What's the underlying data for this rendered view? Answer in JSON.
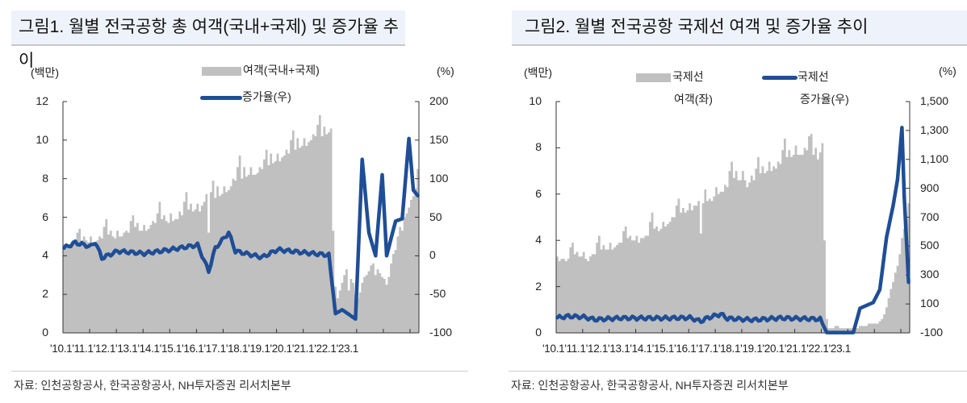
{
  "chart_data": [
    {
      "type": "bar+line",
      "title": "그림1. 월별 전국공항 총 여객(국내+국제) 및 증가율 추이",
      "left_unit": "(백만)",
      "right_unit": "(%)",
      "ylabel_left": "여객 (백만)",
      "ylabel_right": "증가율 (%)",
      "ylim_left": [
        0,
        12
      ],
      "ylim_right": [
        -100,
        200
      ],
      "yticks_left": [
        "12",
        "10",
        "8",
        "6",
        "4",
        "2",
        "0"
      ],
      "yticks_right": [
        "200",
        "150",
        "100",
        "50",
        "0",
        "-50",
        "-100"
      ],
      "x_tick_labels": [
        "'10.1",
        "'11.1",
        "'12.1",
        "'13.1",
        "'14.1",
        "'15.1",
        "'16.1",
        "'17.1",
        "'18.1",
        "'19.1",
        "'20.1",
        "'21.1",
        "'22.1",
        "'23.1"
      ],
      "legend": [
        {
          "name": "여객(국내+국제)",
          "kind": "bar",
          "color": "#c0c0c0"
        },
        {
          "name": "증가율(우)",
          "kind": "line",
          "color": "#1f4e96"
        }
      ],
      "x_start": "2010-01",
      "x_end": "2023-04",
      "series": [
        {
          "name": "여객(국내+국제)",
          "axis": "left",
          "yearly_approx_values": {
            "2010": [
              4.6,
              4.4,
              4.6,
              4.6,
              4.8,
              4.7,
              5.2,
              5.4,
              4.8,
              5.0,
              4.8,
              4.7
            ],
            "2011": [
              5.0,
              4.7,
              4.6,
              4.8,
              5.0,
              4.9,
              5.5,
              5.9,
              5.1,
              5.3,
              5.0,
              4.9
            ],
            "2012": [
              5.3,
              5.0,
              5.0,
              5.2,
              5.3,
              5.2,
              5.8,
              6.1,
              5.5,
              5.7,
              5.3,
              5.3
            ],
            "2013": [
              5.6,
              5.3,
              5.4,
              5.6,
              5.8,
              5.7,
              6.2,
              6.8,
              5.9,
              6.1,
              5.8,
              5.7
            ],
            "2014": [
              6.2,
              5.8,
              5.9,
              5.9,
              6.3,
              6.1,
              6.8,
              7.3,
              6.4,
              6.7,
              6.3,
              6.4
            ],
            "2015": [
              6.7,
              6.3,
              6.6,
              6.8,
              7.2,
              5.2,
              7.3,
              7.9,
              7.0,
              7.6,
              7.1,
              7.2
            ],
            "2016": [
              7.6,
              7.3,
              7.4,
              7.6,
              8.0,
              7.9,
              8.6,
              9.2,
              8.0,
              8.6,
              8.1,
              8.2
            ],
            "2017": [
              8.6,
              8.2,
              8.2,
              8.3,
              8.6,
              8.5,
              9.0,
              9.5,
              8.7,
              9.3,
              8.8,
              8.9
            ],
            "2018": [
              9.3,
              8.9,
              9.1,
              9.2,
              9.5,
              9.3,
              10.0,
              10.5,
              9.5,
              10.1,
              9.6,
              9.7
            ],
            "2019": [
              10.1,
              9.7,
              9.9,
              10.0,
              10.3,
              10.2,
              10.8,
              11.3,
              10.2,
              10.7,
              10.3,
              10.4
            ],
            "2020": [
              10.6,
              5.3,
              2.4,
              1.8,
              2.2,
              2.6,
              3.0,
              3.3,
              2.2,
              2.8,
              2.6,
              2.0
            ],
            "2021": [
              1.8,
              2.1,
              2.6,
              2.9,
              3.0,
              3.2,
              3.5,
              3.6,
              3.0,
              3.3,
              3.1,
              2.9
            ],
            "2022": [
              2.8,
              2.5,
              2.9,
              3.6,
              4.1,
              4.3,
              5.0,
              5.5,
              5.3,
              6.0,
              6.2,
              6.5
            ],
            "2023": [
              6.9,
              7.1,
              7.5,
              8.5
            ]
          }
        },
        {
          "name": "증가율(우)",
          "axis": "right",
          "key_points": [
            {
              "x": "2010-01",
              "y": 10
            },
            {
              "x": "2010-06",
              "y": 17
            },
            {
              "x": "2011-01",
              "y": 12
            },
            {
              "x": "2011-03",
              "y": 18
            },
            {
              "x": "2011-06",
              "y": -3
            },
            {
              "x": "2012-01",
              "y": 6
            },
            {
              "x": "2013-01",
              "y": 3
            },
            {
              "x": "2014-01",
              "y": 8
            },
            {
              "x": "2015-01",
              "y": 14
            },
            {
              "x": "2015-06",
              "y": -20
            },
            {
              "x": "2015-09",
              "y": 10
            },
            {
              "x": "2016-03",
              "y": 30
            },
            {
              "x": "2016-06",
              "y": 6
            },
            {
              "x": "2017-06",
              "y": -2
            },
            {
              "x": "2018-01",
              "y": 8
            },
            {
              "x": "2019-01",
              "y": 4
            },
            {
              "x": "2019-12",
              "y": 1
            },
            {
              "x": "2020-03",
              "y": -75
            },
            {
              "x": "2020-06",
              "y": -70
            },
            {
              "x": "2020-12",
              "y": -82
            },
            {
              "x": "2021-03",
              "y": 125
            },
            {
              "x": "2021-06",
              "y": 30
            },
            {
              "x": "2021-09",
              "y": 0
            },
            {
              "x": "2021-12",
              "y": 105
            },
            {
              "x": "2022-02",
              "y": 0
            },
            {
              "x": "2022-06",
              "y": 45
            },
            {
              "x": "2022-09",
              "y": 48
            },
            {
              "x": "2022-12",
              "y": 152
            },
            {
              "x": "2023-02",
              "y": 85
            },
            {
              "x": "2023-04",
              "y": 78
            }
          ]
        }
      ],
      "grid": false
    },
    {
      "type": "bar+line",
      "title": "그림2. 월별 전국공항 국제선 여객 및 증가율 추이",
      "left_unit": "(백만)",
      "right_unit": "(%)",
      "ylim_left": [
        0,
        10
      ],
      "ylim_right": [
        -100,
        1500
      ],
      "yticks_left": [
        "10",
        "8",
        "6",
        "4",
        "2",
        "0"
      ],
      "yticks_right": [
        "1,500",
        "1,300",
        "1,100",
        "900",
        "700",
        "500",
        "300",
        "100",
        "-100"
      ],
      "x_tick_labels": [
        "'10.1",
        "'11.1",
        "'12.1",
        "'13.1",
        "'14.1",
        "'15.1",
        "'16.1",
        "'17.1",
        "'18.1",
        "'19.1",
        "'20.1",
        "'21.1",
        "'22.1",
        "'23.1"
      ],
      "legend": [
        {
          "name": "국제선 여객(좌)",
          "kind": "bar",
          "color": "#c0c0c0"
        },
        {
          "name": "국제선 증가율(우)",
          "kind": "line",
          "color": "#1f4e96"
        }
      ],
      "x_start": "2010-01",
      "x_end": "2023-04",
      "series": [
        {
          "name": "국제선 여객(좌)",
          "axis": "left",
          "yearly_approx_values": {
            "2010": [
              3.3,
              3.1,
              3.2,
              3.2,
              3.1,
              3.2,
              3.7,
              3.9,
              3.4,
              3.5,
              3.3,
              3.3
            ],
            "2011": [
              3.5,
              3.2,
              3.1,
              3.3,
              3.4,
              3.4,
              3.9,
              4.2,
              3.6,
              3.8,
              3.6,
              3.6
            ],
            "2012": [
              3.9,
              3.6,
              3.7,
              3.8,
              3.9,
              3.9,
              4.4,
              4.6,
              4.1,
              4.2,
              4.0,
              4.0
            ],
            "2013": [
              4.2,
              3.9,
              4.1,
              4.1,
              4.2,
              4.2,
              4.8,
              5.2,
              4.5,
              4.6,
              4.4,
              4.5
            ],
            "2014": [
              4.8,
              4.6,
              4.7,
              4.8,
              5.0,
              5.0,
              5.5,
              5.8,
              5.2,
              5.4,
              5.2,
              5.3
            ],
            "2015": [
              5.6,
              5.3,
              5.5,
              5.5,
              5.7,
              4.3,
              5.6,
              6.2,
              5.7,
              5.8,
              5.7,
              5.9
            ],
            "2016": [
              6.3,
              6.0,
              6.1,
              6.1,
              6.4,
              6.3,
              7.0,
              7.4,
              6.7,
              7.0,
              6.6,
              6.6
            ],
            "2017": [
              7.0,
              6.6,
              6.3,
              6.5,
              6.8,
              6.6,
              7.1,
              7.6,
              6.9,
              7.2,
              6.9,
              7.0
            ],
            "2018": [
              7.4,
              7.0,
              7.2,
              7.1,
              7.4,
              7.3,
              7.9,
              8.4,
              7.6,
              7.9,
              7.6,
              7.7
            ],
            "2019": [
              8.1,
              7.7,
              7.7,
              7.7,
              8.0,
              7.9,
              8.5,
              8.6,
              7.7,
              8.0,
              7.5,
              7.8
            ],
            "2020": [
              8.2,
              4.0,
              0.6,
              0.2,
              0.2,
              0.2,
              0.3,
              0.3,
              0.2,
              0.2,
              0.2,
              0.2
            ],
            "2021": [
              0.2,
              0.2,
              0.2,
              0.2,
              0.2,
              0.3,
              0.3,
              0.3,
              0.3,
              0.4,
              0.4,
              0.4
            ],
            "2022": [
              0.4,
              0.4,
              0.5,
              0.6,
              0.8,
              1.1,
              1.5,
              1.9,
              2.2,
              2.6,
              2.9,
              3.4
            ],
            "2023": [
              4.1,
              4.5,
              4.9,
              5.6
            ]
          }
        },
        {
          "name": "국제선 증가율(우)",
          "axis": "right",
          "key_points": [
            {
              "x": "2010-01",
              "y": 5
            },
            {
              "x": "2010-06",
              "y": 15
            },
            {
              "x": "2011-01",
              "y": 10
            },
            {
              "x": "2011-06",
              "y": -8
            },
            {
              "x": "2012-06",
              "y": 3
            },
            {
              "x": "2014-01",
              "y": 2
            },
            {
              "x": "2015-01",
              "y": 5
            },
            {
              "x": "2015-06",
              "y": -20
            },
            {
              "x": "2015-09",
              "y": 4
            },
            {
              "x": "2016-03",
              "y": 30
            },
            {
              "x": "2016-06",
              "y": 0
            },
            {
              "x": "2017-06",
              "y": -10
            },
            {
              "x": "2018-06",
              "y": 3
            },
            {
              "x": "2019-12",
              "y": -5
            },
            {
              "x": "2020-03",
              "y": -98
            },
            {
              "x": "2021-03",
              "y": -98
            },
            {
              "x": "2021-06",
              "y": 70
            },
            {
              "x": "2021-12",
              "y": 110
            },
            {
              "x": "2022-03",
              "y": 200
            },
            {
              "x": "2022-06",
              "y": 560
            },
            {
              "x": "2022-09",
              "y": 780
            },
            {
              "x": "2022-11",
              "y": 960
            },
            {
              "x": "2023-01",
              "y": 1320
            },
            {
              "x": "2023-02",
              "y": 850
            },
            {
              "x": "2023-04",
              "y": 250
            }
          ]
        }
      ],
      "grid": false
    }
  ],
  "panel1": {
    "title": "그림1. 월별 전국공항 총 여객(국내+국제) 및 증가율 추이",
    "left_unit": "(백만)",
    "right_unit": "(%)",
    "legend_bar": "여객(국내+국제)",
    "legend_line": "증가율(우)",
    "x_labels": "'10.1'11.1'12.1'13.1'14.1'15.1'16.1'17.1'18.1'19.1'20.1'21.1'22.1'23.1",
    "source": "자료: 인천공항공사, 한국공항공사, NH투자증권 리서치본부"
  },
  "panel2": {
    "title": "그림2. 월별 전국공항 국제선 여객 및 증가율 추이",
    "left_unit": "(백만)",
    "right_unit": "(%)",
    "legend_bar_line1": "국제선",
    "legend_bar_line2": "여객(좌)",
    "legend_line_line1": "국제선",
    "legend_line_line2": "증가율(우)",
    "x_labels": "'10.1'11.1'12.1'13.1'14.1'15.1'16.1'17.1'18.1'19.1'20.1'21.1'22.1'23.1",
    "source": "자료: 인천공항공사, 한국공항공사, NH투자증권 리서치본부"
  },
  "colors": {
    "bar": "#c0c0c0",
    "line": "#1f4e96",
    "title_bg": "#eef2fa",
    "axis": "#333333"
  }
}
